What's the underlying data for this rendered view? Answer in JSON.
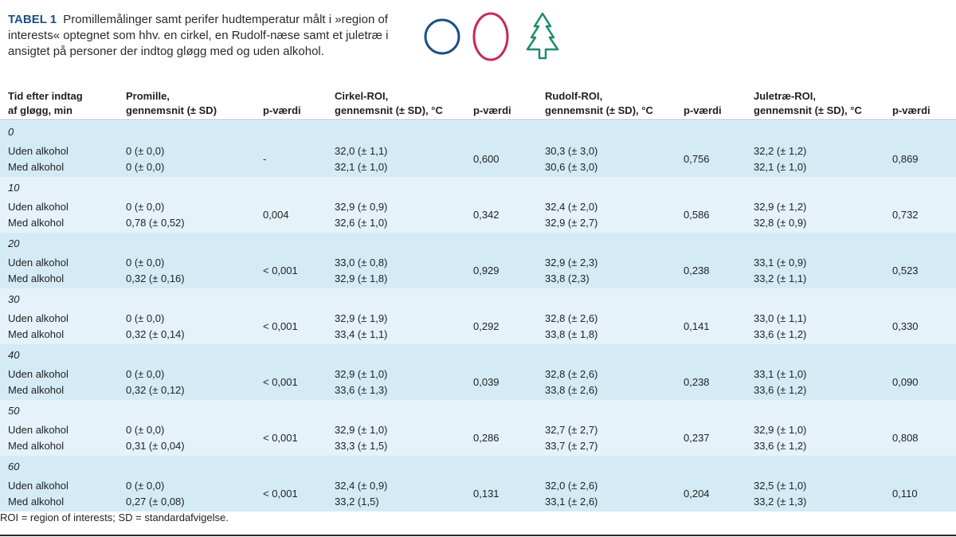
{
  "caption": {
    "tag": "TABEL 1",
    "text": "Promillemålinger samt perifer hudtemperatur målt i »region of interests« optegnet som hhv. en cirkel, en Rudolf-næse samt et juletræ i ansigtet på personer der indtog gløgg med og uden alkohol."
  },
  "icons": [
    {
      "name": "circle-icon",
      "color": "#1c4f86"
    },
    {
      "name": "ellipse-icon",
      "color": "#c8285a"
    },
    {
      "name": "christmas-tree-icon",
      "color": "#1e8a6e"
    }
  ],
  "headers": [
    "Tid efter indtag\naf gløgg, min",
    "Promille,\ngennemsnit (± SD)",
    "p-værdi",
    "Cirkel-ROI,\ngennemsnit (± SD), °C",
    "p-værdi",
    "Rudolf-ROI,\ngennemsnit (± SD), °C",
    "p-værdi",
    "Juletræ-ROI,\ngennemsnit (± SD), °C",
    "p-værdi"
  ],
  "groups": [
    {
      "time": "0",
      "labels": [
        "Uden alkohol",
        "Med alkohol"
      ],
      "promille": [
        "0 (± 0,0)",
        "0 (± 0,0)"
      ],
      "p_promille": "-",
      "cirkel": [
        "32,0 (± 1,1)",
        "32,1 (± 1,0)"
      ],
      "p_cirkel": "0,600",
      "rudolf": [
        "30,3 (± 3,0)",
        "30,6 (± 3,0)"
      ],
      "p_rudolf": "0,756",
      "juletrae": [
        "32,2 (± 1,2)",
        "32,1 (± 1,0)"
      ],
      "p_juletrae": "0,869"
    },
    {
      "time": "10",
      "labels": [
        "Uden alkohol",
        "Med alkohol"
      ],
      "promille": [
        "0 (± 0,0)",
        "0,78 (± 0,52)"
      ],
      "p_promille": "0,004",
      "cirkel": [
        "32,9 (± 0,9)",
        "32,6 (± 1,0)"
      ],
      "p_cirkel": "0,342",
      "rudolf": [
        "32,4 (± 2,0)",
        "32,9 (± 2,7)"
      ],
      "p_rudolf": "0,586",
      "juletrae": [
        "32,9 (± 1,2)",
        "32,8 (± 0,9)"
      ],
      "p_juletrae": "0,732"
    },
    {
      "time": "20",
      "labels": [
        "Uden alkohol",
        "Med alkohol"
      ],
      "promille": [
        "0 (± 0,0)",
        "0,32 (± 0,16)"
      ],
      "p_promille": "< 0,001",
      "cirkel": [
        "33,0 (± 0,8)",
        "32,9 (± 1,8)"
      ],
      "p_cirkel": "0,929",
      "rudolf": [
        "32,9 (± 2,3)",
        "33,8 (2,3)"
      ],
      "p_rudolf": "0,238",
      "juletrae": [
        "33,1 (± 0,9)",
        "33,2 (± 1,1)"
      ],
      "p_juletrae": "0,523"
    },
    {
      "time": "30",
      "labels": [
        "Uden alkohol",
        "Med alkohol"
      ],
      "promille": [
        "0 (± 0,0)",
        "0,32 (± 0,14)"
      ],
      "p_promille": "< 0,001",
      "cirkel": [
        "32,9 (± 1,9)",
        "33,4 (± 1,1)"
      ],
      "p_cirkel": "0,292",
      "rudolf": [
        "32,8 (± 2,6)",
        "33,8 (± 1,8)"
      ],
      "p_rudolf": "0,141",
      "juletrae": [
        "33,0 (± 1,1)",
        "33,6 (± 1,2)"
      ],
      "p_juletrae": "0,330"
    },
    {
      "time": "40",
      "labels": [
        "Uden alkohol",
        "Med alkohol"
      ],
      "promille": [
        "0 (± 0,0)",
        "0,32 (± 0,12)"
      ],
      "p_promille": "< 0,001",
      "cirkel": [
        "32,9 (± 1,0)",
        "33,6 (± 1,3)"
      ],
      "p_cirkel": "0,039",
      "rudolf": [
        "32,8 (± 2,6)",
        "33,8 (± 2,6)"
      ],
      "p_rudolf": "0,238",
      "juletrae": [
        "33,1 (± 1,0)",
        "33,6 (± 1,2)"
      ],
      "p_juletrae": "0,090"
    },
    {
      "time": "50",
      "labels": [
        "Uden alkohol",
        "Med alkohol"
      ],
      "promille": [
        "0 (± 0,0)",
        "0,31 (± 0,04)"
      ],
      "p_promille": "< 0,001",
      "cirkel": [
        "32,9 (± 1,0)",
        "33,3 (± 1,5)"
      ],
      "p_cirkel": "0,286",
      "rudolf": [
        "32,7 (± 2,7)",
        "33,7 (± 2,7)"
      ],
      "p_rudolf": "0,237",
      "juletrae": [
        "32,9 (± 1,0)",
        "33,6 (± 1,2)"
      ],
      "p_juletrae": "0,808"
    },
    {
      "time": "60",
      "labels": [
        "Uden alkohol",
        "Med alkohol"
      ],
      "promille": [
        "0 (± 0,0)",
        "0,27 (± 0,08)"
      ],
      "p_promille": "< 0,001",
      "cirkel": [
        "32,4 (± 0,9)",
        "33,2 (1,5)"
      ],
      "p_cirkel": "0,131",
      "rudolf": [
        "32,0 (± 2,6)",
        "33,1 (± 2,6)"
      ],
      "p_rudolf": "0,204",
      "juletrae": [
        "32,5 (± 1,0)",
        "33,2 (± 1,3)"
      ],
      "p_juletrae": "0,110"
    }
  ],
  "footnote": "ROI = region of interests; SD = standardafvigelse."
}
